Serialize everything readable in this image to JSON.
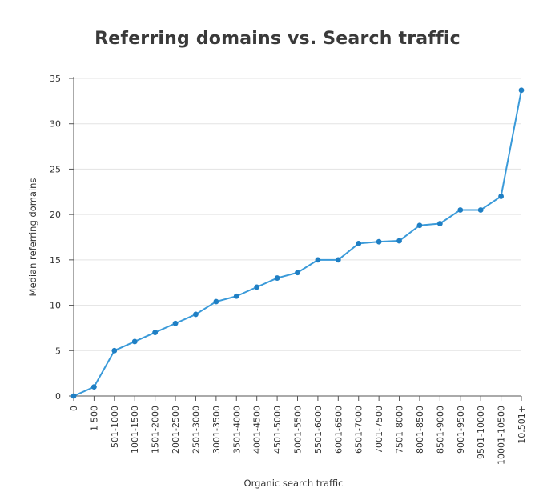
{
  "chart_data": {
    "type": "line",
    "title": "Referring domains vs. Search traffic",
    "xlabel": "Organic search traffic",
    "ylabel": "Median referring domains",
    "categories": [
      "0",
      "1-500",
      "501-1000",
      "1001-1500",
      "1501-2000",
      "2001-2500",
      "2501-3000",
      "3001-3500",
      "3501-4000",
      "4001-4500",
      "4501-5000",
      "5001-5500",
      "5501-6000",
      "6001-6500",
      "6501-7000",
      "7001-7500",
      "7501-8000",
      "8001-8500",
      "8501-9000",
      "9001-9500",
      "9501-10000",
      "10001-10500",
      "10,501+"
    ],
    "values": [
      0,
      1,
      5,
      6,
      7,
      8,
      9,
      10.4,
      11,
      12,
      13,
      13.6,
      15,
      15,
      16.8,
      17,
      17.1,
      18.8,
      19,
      20.5,
      20.5,
      22,
      33.7
    ],
    "ylim": [
      0,
      35
    ],
    "yticks": [
      0,
      5,
      10,
      15,
      20,
      25,
      30,
      35
    ],
    "grid": "horizontal",
    "color": "#3a9ad9"
  }
}
